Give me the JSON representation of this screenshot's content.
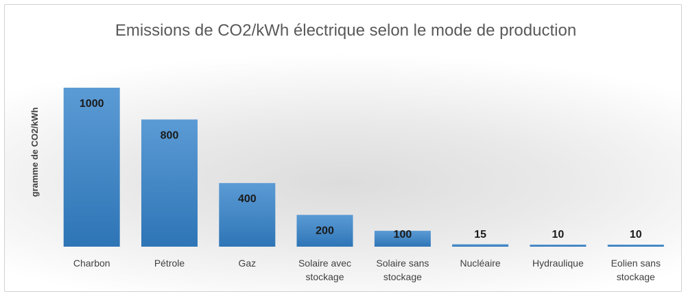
{
  "chart_data": {
    "type": "bar",
    "title": "Emissions de CO2/kWh électrique selon le mode de production",
    "xlabel": "",
    "ylabel": "gramme de CO2/kWh",
    "categories": [
      [
        "Charbon"
      ],
      [
        "Pétrole"
      ],
      [
        "Gaz"
      ],
      [
        "Solaire avec",
        "stockage"
      ],
      [
        "Solaire sans",
        "stockage"
      ],
      [
        "Nucléaire"
      ],
      [
        "Hydraulique"
      ],
      [
        "Eolien sans",
        "stockage"
      ]
    ],
    "values": [
      1000,
      800,
      400,
      200,
      100,
      15,
      10,
      10
    ],
    "data_labels": [
      "1000",
      "800",
      "400",
      "200",
      "100",
      "15",
      "10",
      "10"
    ],
    "ylim": [
      0,
      1000
    ],
    "grid": false,
    "legend": "none",
    "colors": {
      "bar_top": "#5b9bd5",
      "bar_bottom": "#2e75b6"
    }
  }
}
